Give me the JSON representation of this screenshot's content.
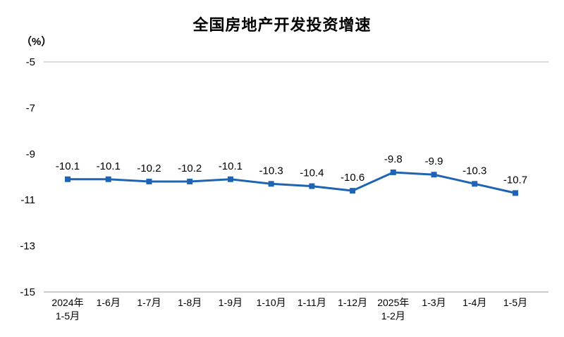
{
  "chart_data": {
    "type": "line",
    "title": "全国房地产开发投资增速",
    "ylabel": "（%）",
    "categories": [
      "2024年\n1-5月",
      "1-6月",
      "1-7月",
      "1-8月",
      "1-9月",
      "1-10月",
      "1-11月",
      "1-12月",
      "2025年\n1-2月",
      "1-3月",
      "1-4月",
      "1-5月"
    ],
    "values": [
      -10.1,
      -10.1,
      -10.2,
      -10.2,
      -10.1,
      -10.3,
      -10.4,
      -10.6,
      -9.8,
      -9.9,
      -10.3,
      -10.7
    ],
    "point_labels": [
      "-10.1",
      "-10.1",
      "-10.2",
      "-10.2",
      "-10.1",
      "-10.3",
      "-10.4",
      "-10.6",
      "-9.8",
      "-9.9",
      "-10.3",
      "-10.7"
    ],
    "ylim": [
      -15,
      -5
    ],
    "yticks": [
      -5,
      -7,
      -9,
      -11,
      -13,
      -15
    ],
    "line_color": "#1f64b4",
    "axis_line_color": "#9a9a9a",
    "top_border_color": "#bfbfbf",
    "label_color": "#000000",
    "marker": "square",
    "legend": "none",
    "grid": "off"
  }
}
